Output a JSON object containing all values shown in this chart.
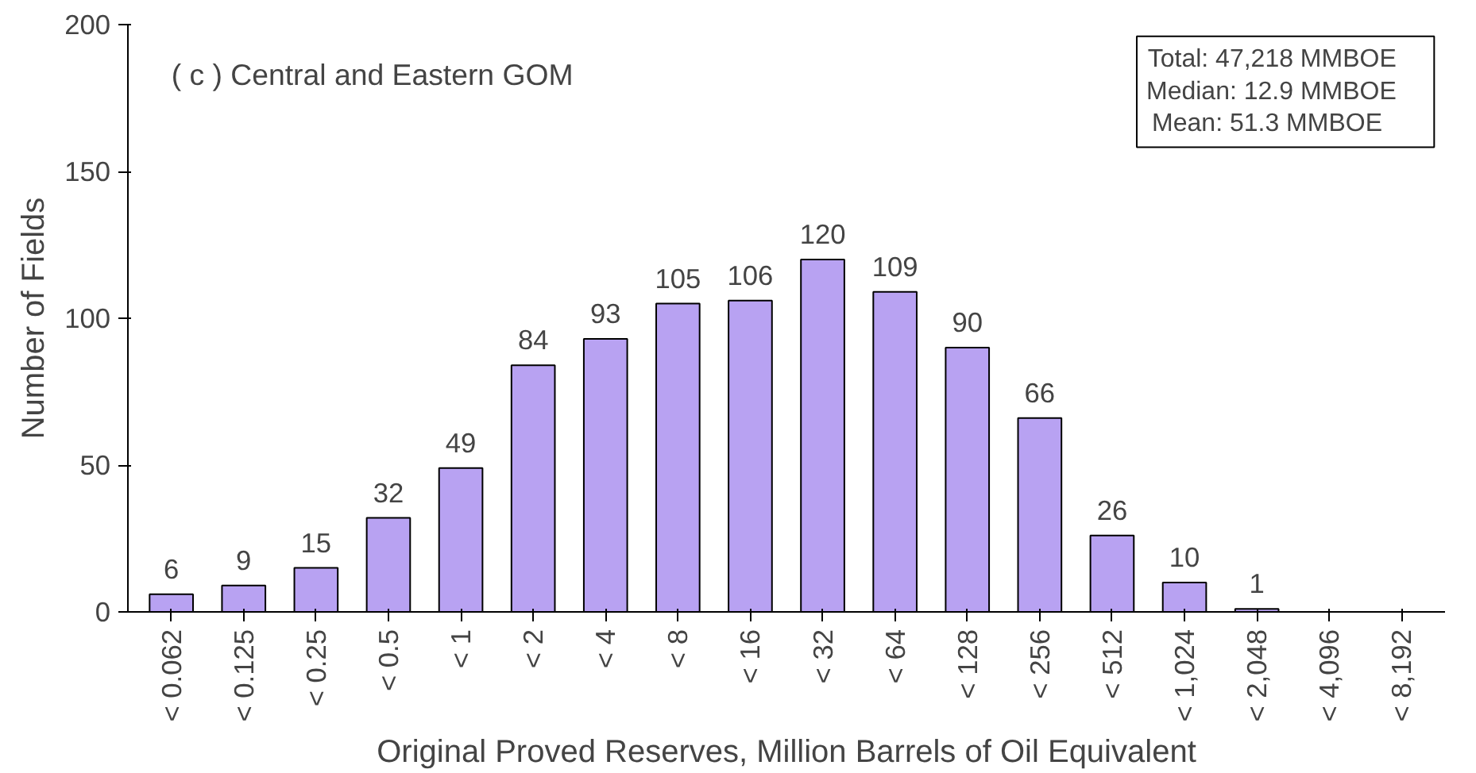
{
  "chart_data": {
    "type": "bar",
    "xlabel": "Original Proved Reserves, Million Barrels of Oil Equivalent",
    "ylabel": "Number of Fields",
    "categories": [
      "< 0.062",
      "< 0.125",
      "< 0.25",
      "< 0.5",
      "< 1",
      "< 2",
      "< 4",
      "< 8",
      "< 16",
      "< 32",
      "< 64",
      "< 128",
      "< 256",
      "< 512",
      "< 1,024",
      "< 2,048",
      "< 4,096",
      "< 8,192"
    ],
    "values": [
      6,
      9,
      15,
      32,
      49,
      84,
      93,
      105,
      106,
      120,
      109,
      90,
      66,
      26,
      10,
      1,
      0,
      0
    ],
    "value_labels": [
      "6",
      "9",
      "15",
      "32",
      "49",
      "84",
      "93",
      "105",
      "106",
      "120",
      "109",
      "90",
      "66",
      "26",
      "10",
      "1",
      null,
      null
    ],
    "color": "#b8a2f2",
    "ylim": [
      0,
      200
    ],
    "yticks": [
      0,
      50,
      100,
      150,
      200
    ],
    "grid": false,
    "annotations": [
      "( c )  Central and Eastern GOM",
      "Total:    47,218  MMBOE",
      "Median:    12.9  MMBOE",
      "Mean:      51.3  MMBOE"
    ]
  }
}
